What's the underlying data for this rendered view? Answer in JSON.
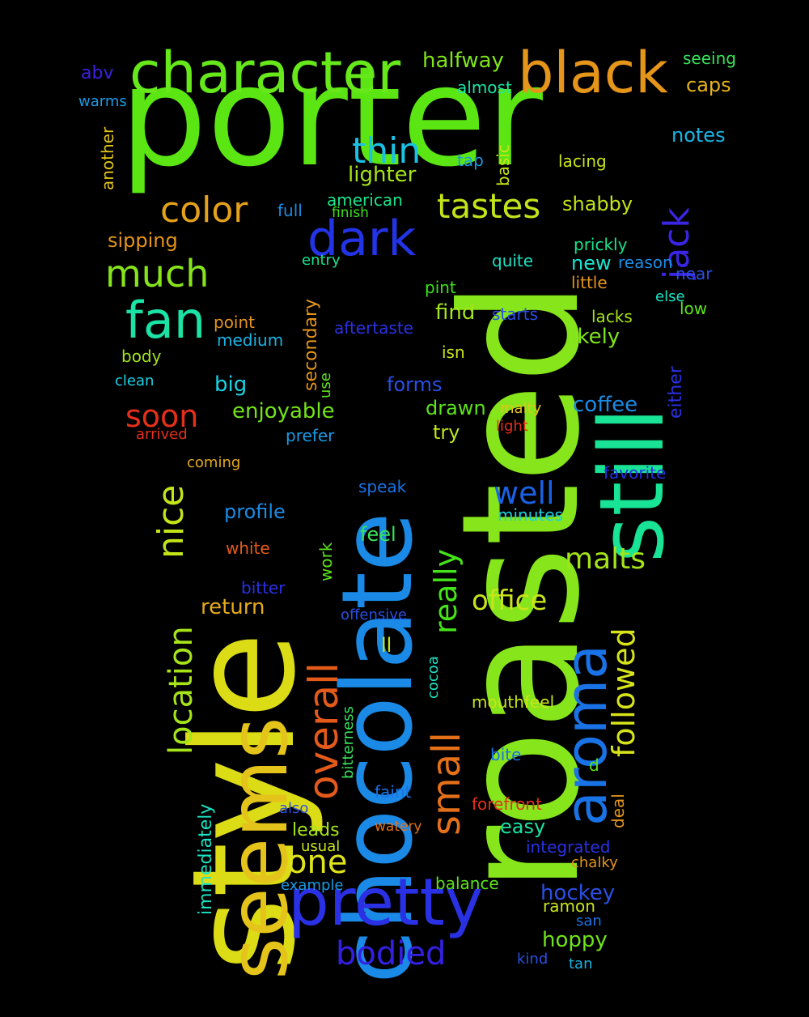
{
  "words": [
    {
      "text": "porter",
      "color": "#5be614"
    },
    {
      "text": "style",
      "color": "#dcdc16"
    },
    {
      "text": "roasted",
      "color": "#86e51b"
    },
    {
      "text": "chocolate",
      "color": "#1a8ae6"
    },
    {
      "text": "still",
      "color": "#19e394"
    },
    {
      "text": "seems",
      "color": "#e4c41a"
    },
    {
      "text": "pretty",
      "color": "#2a31e5"
    },
    {
      "text": "aroma",
      "color": "#1a73e6"
    },
    {
      "text": "character",
      "color": "#66e81a"
    },
    {
      "text": "black",
      "color": "#e4951a"
    },
    {
      "text": "dark",
      "color": "#2333e6"
    },
    {
      "text": "fan",
      "color": "#1be3a5"
    },
    {
      "text": "much",
      "color": "#87e41b"
    },
    {
      "text": "color",
      "color": "#e4a21a"
    },
    {
      "text": "tastes",
      "color": "#c2e41a"
    },
    {
      "text": "thin",
      "color": "#1ac2e4"
    },
    {
      "text": "jack",
      "color": "#3a25e3"
    },
    {
      "text": "overall",
      "color": "#e45a1a"
    },
    {
      "text": "small",
      "color": "#e4701a"
    },
    {
      "text": "nice",
      "color": "#c4e41a"
    },
    {
      "text": "location",
      "color": "#a6e41a"
    },
    {
      "text": "one",
      "color": "#dfe41a"
    },
    {
      "text": "bodied",
      "color": "#3320e3"
    },
    {
      "text": "really",
      "color": "#45e31a"
    },
    {
      "text": "followed",
      "color": "#d7e41a"
    },
    {
      "text": "malts",
      "color": "#a4e41a"
    },
    {
      "text": "office",
      "color": "#c9e41a"
    },
    {
      "text": "well",
      "color": "#1a62e4"
    },
    {
      "text": "soon",
      "color": "#e4301a"
    },
    {
      "text": "halfway",
      "color": "#7fe41a"
    },
    {
      "text": "lighter",
      "color": "#a5e41a"
    },
    {
      "text": "shabby",
      "color": "#c1e41a"
    },
    {
      "text": "american",
      "color": "#1ae48c"
    },
    {
      "text": "finish",
      "color": "#38e41a"
    },
    {
      "text": "full",
      "color": "#1a8ce4"
    },
    {
      "text": "sipping",
      "color": "#e4951a"
    },
    {
      "text": "enjoyable",
      "color": "#74e41a"
    },
    {
      "text": "find",
      "color": "#a4e41a"
    },
    {
      "text": "likely",
      "color": "#7fe41a"
    },
    {
      "text": "coffee",
      "color": "#1a8ce4"
    },
    {
      "text": "drawn",
      "color": "#5be41a"
    },
    {
      "text": "try",
      "color": "#bde41a"
    },
    {
      "text": "forms",
      "color": "#2a4fe4"
    },
    {
      "text": "big",
      "color": "#1ad1e4"
    },
    {
      "text": "profile",
      "color": "#1a8ce4"
    },
    {
      "text": "feel",
      "color": "#38e45a"
    },
    {
      "text": "return",
      "color": "#e4aa1a"
    },
    {
      "text": "hockey",
      "color": "#2a4fe4"
    },
    {
      "text": "hoppy",
      "color": "#6fe41a"
    },
    {
      "text": "notes",
      "color": "#1ab4e4"
    },
    {
      "text": "caps",
      "color": "#e4b21a"
    },
    {
      "text": "seeing",
      "color": "#38e45a"
    },
    {
      "text": "almost",
      "color": "#1ae4a5"
    },
    {
      "text": "abv",
      "color": "#3a20e3"
    },
    {
      "text": "warms",
      "color": "#1a9ae4"
    },
    {
      "text": "another",
      "color": "#e4c41a"
    },
    {
      "text": "tap",
      "color": "#1a9ae4"
    },
    {
      "text": "basic",
      "color": "#c9e41a"
    },
    {
      "text": "lacing",
      "color": "#c9e41a"
    },
    {
      "text": "prickly",
      "color": "#1ae48c"
    },
    {
      "text": "reason",
      "color": "#1a8ce4"
    },
    {
      "text": "near",
      "color": "#2a4fe4"
    },
    {
      "text": "else",
      "color": "#1ae4c4"
    },
    {
      "text": "quite",
      "color": "#1ae4c4"
    },
    {
      "text": "new",
      "color": "#1ae4d1"
    },
    {
      "text": "little",
      "color": "#e4951a"
    },
    {
      "text": "low",
      "color": "#5be41a"
    },
    {
      "text": "entry",
      "color": "#1ae48c"
    },
    {
      "text": "pint",
      "color": "#38e41a"
    },
    {
      "text": "starts",
      "color": "#2a4fe4"
    },
    {
      "text": "lacks",
      "color": "#a4e41a"
    },
    {
      "text": "aftertaste",
      "color": "#2a31e5"
    },
    {
      "text": "point",
      "color": "#e4951a"
    },
    {
      "text": "medium",
      "color": "#1ab4e4"
    },
    {
      "text": "body",
      "color": "#a4e41a"
    },
    {
      "text": "clean",
      "color": "#1ad1e4"
    },
    {
      "text": "secondary",
      "color": "#e4951a"
    },
    {
      "text": "use",
      "color": "#5be41a"
    },
    {
      "text": "isn",
      "color": "#c9e41a"
    },
    {
      "text": "either",
      "color": "#2a31e5"
    },
    {
      "text": "malty",
      "color": "#e4c41a"
    },
    {
      "text": "light",
      "color": "#e4301a"
    },
    {
      "text": "arrived",
      "color": "#e4301a"
    },
    {
      "text": "prefer",
      "color": "#1a9ae4"
    },
    {
      "text": "coming",
      "color": "#e4aa1a"
    },
    {
      "text": "favorite",
      "color": "#2a31e5"
    },
    {
      "text": "speak",
      "color": "#1a73e6"
    },
    {
      "text": "minutes",
      "color": "#1ad1e4"
    },
    {
      "text": "white",
      "color": "#e45a1a"
    },
    {
      "text": "work",
      "color": "#5be41a"
    },
    {
      "text": "bitter",
      "color": "#2a31e5"
    },
    {
      "text": "offensive",
      "color": "#2a4fe4"
    },
    {
      "text": "ll",
      "color": "#c9e41a"
    },
    {
      "text": "cocoa",
      "color": "#1ae4c4"
    },
    {
      "text": "bitterness",
      "color": "#38e45a"
    },
    {
      "text": "mouthfeel",
      "color": "#c9e41a"
    },
    {
      "text": "bite",
      "color": "#1a73e6"
    },
    {
      "text": "d",
      "color": "#5be41a"
    },
    {
      "text": "faint",
      "color": "#1a73e6"
    },
    {
      "text": "forefront",
      "color": "#e4301a"
    },
    {
      "text": "deal",
      "color": "#e4951a"
    },
    {
      "text": "immediately",
      "color": "#1ae4c4"
    },
    {
      "text": "also",
      "color": "#2a4fe4"
    },
    {
      "text": "leads",
      "color": "#a4e41a"
    },
    {
      "text": "watery",
      "color": "#e4701a"
    },
    {
      "text": "easy",
      "color": "#1ae4a5"
    },
    {
      "text": "integrated",
      "color": "#2a31e5"
    },
    {
      "text": "usual",
      "color": "#c9e41a"
    },
    {
      "text": "chalky",
      "color": "#e4951a"
    },
    {
      "text": "example",
      "color": "#1a9ae4"
    },
    {
      "text": "balance",
      "color": "#5be41a"
    },
    {
      "text": "ramon",
      "color": "#c9e41a"
    },
    {
      "text": "san",
      "color": "#1a73e6"
    },
    {
      "text": "kind",
      "color": "#2a4fe4"
    },
    {
      "text": "tan",
      "color": "#1ab4e4"
    }
  ]
}
